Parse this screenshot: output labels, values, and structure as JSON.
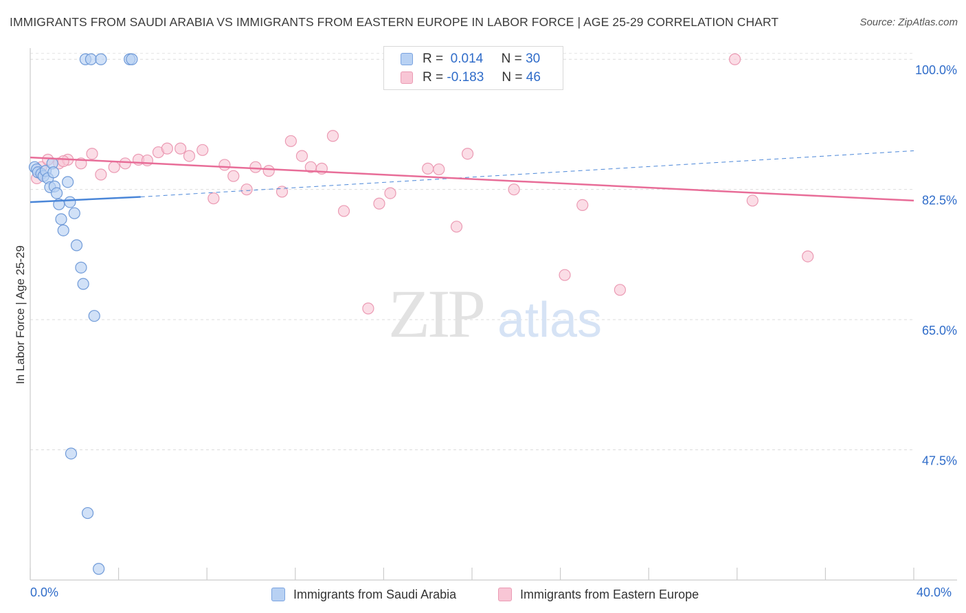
{
  "title": "IMMIGRANTS FROM SAUDI ARABIA VS IMMIGRANTS FROM EASTERN EUROPE IN LABOR FORCE | AGE 25-29 CORRELATION CHART",
  "source": "Source: ZipAtlas.com",
  "watermark": {
    "zip": "ZIP",
    "atlas": "atlas"
  },
  "legend": {
    "rows": [
      {
        "r_label": "R =",
        "r_value": "0.014",
        "n_label": "N =",
        "n_value": "30"
      },
      {
        "r_label": "R =",
        "r_value": "-0.183",
        "n_label": "N =",
        "n_value": "46"
      }
    ]
  },
  "chart_data": {
    "type": "scatter",
    "ylabel": "In Labor Force | Age 25-29",
    "xlim": [
      0,
      40
    ],
    "ylim": [
      30,
      101.5
    ],
    "x_tick_labels": [
      "0.0%",
      "40.0%"
    ],
    "y_ticks": [
      {
        "value": 100.0,
        "label": "100.0%"
      },
      {
        "value": 82.5,
        "label": "82.5%"
      },
      {
        "value": 65.0,
        "label": "65.0%"
      },
      {
        "value": 47.5,
        "label": "47.5%"
      }
    ],
    "colors": {
      "blue": "#4a86d8",
      "pink": "#e86d98",
      "blue_fill": "#b8d1f3",
      "pink_fill": "#f8c6d5"
    },
    "series": [
      {
        "name": "Immigrants from Saudi Arabia",
        "color": "#4a86d8",
        "trend": {
          "x0": 0,
          "y0": 80.8,
          "x1": 5.0,
          "y1": 81.5,
          "dashed_to_x": 40,
          "dashed_y1": 87.7
        },
        "points": [
          [
            0.2,
            85.5
          ],
          [
            0.3,
            85.2
          ],
          [
            0.35,
            84.8
          ],
          [
            0.5,
            84.6
          ],
          [
            0.6,
            84.3
          ],
          [
            0.7,
            85.0
          ],
          [
            0.8,
            84.0
          ],
          [
            0.9,
            82.8
          ],
          [
            1.0,
            86.0
          ],
          [
            1.05,
            84.8
          ],
          [
            1.1,
            82.9
          ],
          [
            1.2,
            82.0
          ],
          [
            1.3,
            80.5
          ],
          [
            1.4,
            78.5
          ],
          [
            1.5,
            77.0
          ],
          [
            1.7,
            83.5
          ],
          [
            1.8,
            80.8
          ],
          [
            1.85,
            47.0
          ],
          [
            2.0,
            79.3
          ],
          [
            2.1,
            75.0
          ],
          [
            2.3,
            72.0
          ],
          [
            2.4,
            69.8
          ],
          [
            2.5,
            100.0
          ],
          [
            2.6,
            39.0
          ],
          [
            2.75,
            100.0
          ],
          [
            2.9,
            65.5
          ],
          [
            3.2,
            100.0
          ],
          [
            4.5,
            100.0
          ],
          [
            4.6,
            100.0
          ],
          [
            3.1,
            31.5
          ]
        ]
      },
      {
        "name": "Immigrants from Eastern Europe",
        "color": "#e86d98",
        "trend": {
          "x0": 0,
          "y0": 86.8,
          "x1": 40,
          "y1": 81.0
        },
        "points": [
          [
            0.3,
            84.0
          ],
          [
            0.5,
            85.5
          ],
          [
            0.8,
            86.5
          ],
          [
            1.3,
            86.0
          ],
          [
            1.7,
            86.5
          ],
          [
            2.3,
            86.0
          ],
          [
            2.8,
            87.3
          ],
          [
            3.2,
            84.5
          ],
          [
            3.8,
            85.5
          ],
          [
            4.3,
            86.0
          ],
          [
            4.9,
            86.5
          ],
          [
            5.3,
            86.4
          ],
          [
            5.8,
            87.5
          ],
          [
            6.2,
            88.0
          ],
          [
            6.8,
            88.0
          ],
          [
            7.2,
            87.0
          ],
          [
            7.8,
            87.8
          ],
          [
            8.3,
            81.3
          ],
          [
            8.8,
            85.8
          ],
          [
            9.2,
            84.3
          ],
          [
            9.8,
            82.5
          ],
          [
            10.2,
            85.5
          ],
          [
            10.8,
            85.0
          ],
          [
            11.4,
            82.2
          ],
          [
            11.8,
            89.0
          ],
          [
            12.3,
            87.0
          ],
          [
            12.7,
            85.5
          ],
          [
            13.2,
            85.3
          ],
          [
            13.7,
            89.7
          ],
          [
            14.2,
            79.6
          ],
          [
            15.3,
            66.5
          ],
          [
            15.8,
            80.6
          ],
          [
            16.3,
            82.0
          ],
          [
            18.0,
            85.3
          ],
          [
            18.5,
            85.2
          ],
          [
            19.3,
            77.5
          ],
          [
            19.8,
            87.3
          ],
          [
            20.3,
            100.0
          ],
          [
            21.9,
            82.5
          ],
          [
            24.2,
            71.0
          ],
          [
            25.0,
            80.4
          ],
          [
            26.7,
            69.0
          ],
          [
            31.9,
            100.0
          ],
          [
            32.7,
            81.0
          ],
          [
            35.2,
            73.5
          ],
          [
            1.5,
            86.3
          ]
        ]
      }
    ]
  }
}
